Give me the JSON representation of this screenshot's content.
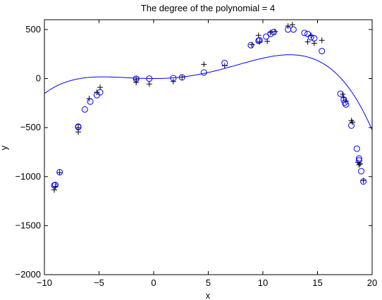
{
  "chart_data": {
    "type": "scatter",
    "title": "The degree of the polynomial = 4",
    "xlabel": "x",
    "ylabel": "y",
    "xlim": [
      -10,
      20
    ],
    "ylim": [
      -2000,
      600
    ],
    "xticks": [
      -10,
      -5,
      0,
      5,
      10,
      15,
      20
    ],
    "yticks": [
      -2000,
      -1500,
      -1000,
      -500,
      0,
      500
    ],
    "xtick_labels": [
      "−10",
      "−5",
      "0",
      "5",
      "10",
      "15",
      "20"
    ],
    "ytick_labels": [
      "−2000",
      "−1500",
      "−1000",
      "−500",
      "0",
      "500"
    ],
    "grid": false,
    "legend": "none",
    "colors": {
      "fit": "#0000ff",
      "points": "#000000",
      "axes": "#000000"
    },
    "fit_coefficients": {
      "note_format": "y = a4*x^4 + a3*x^3 + a2*x^2 + a1*x + a0",
      "a4": -0.0173,
      "a3": 0.1802,
      "a2": 2.004,
      "a1": 0.0,
      "a0": 0.0
    },
    "series": [
      {
        "marker": "plus",
        "x": [
          -9.1,
          -9.0,
          -8.6,
          -6.9,
          -6.9,
          -5.9,
          -5.2,
          -4.9,
          -1.6,
          -1.6,
          -0.4,
          1.8,
          2.6,
          4.6,
          6.5,
          9.0,
          9.6,
          9.7,
          10.4,
          10.7,
          11.1,
          12.3,
          12.7,
          14.1,
          14.4,
          14.7,
          15.4,
          17.3,
          17.4,
          17.6,
          18.1,
          18.2,
          18.7,
          18.8,
          18.9,
          19.2
        ],
        "y": [
          -1135,
          -1100,
          -960,
          -545,
          -500,
          -205,
          -140,
          -90,
          -10,
          -40,
          -55,
          -30,
          15,
          145,
          130,
          345,
          440,
          375,
          380,
          470,
          480,
          535,
          550,
          375,
          440,
          360,
          390,
          -160,
          -195,
          -230,
          -430,
          -445,
          -855,
          -880,
          -870,
          -1040
        ]
      },
      {
        "marker": "circle",
        "x": [
          -9.1,
          -9.0,
          -8.6,
          -6.9,
          -6.9,
          -6.3,
          -5.8,
          -5.2,
          -4.9,
          -1.6,
          -1.6,
          -0.4,
          1.8,
          2.6,
          4.6,
          6.5,
          8.9,
          9.6,
          9.7,
          10.3,
          10.7,
          11.0,
          12.3,
          12.8,
          13.8,
          14.1,
          14.4,
          14.7,
          15.4,
          17.1,
          17.4,
          17.5,
          17.6,
          18.1,
          18.6,
          18.8,
          18.8,
          19.0,
          19.2
        ],
        "y": [
          -1090,
          -1085,
          -955,
          -490,
          -495,
          -315,
          -235,
          -170,
          -140,
          -2,
          -3,
          -1,
          4,
          12,
          62,
          158,
          340,
          385,
          390,
          428,
          455,
          474,
          500,
          500,
          465,
          455,
          420,
          410,
          280,
          -155,
          -215,
          -245,
          -265,
          -480,
          -715,
          -815,
          -835,
          -945,
          -1050
        ]
      }
    ]
  }
}
